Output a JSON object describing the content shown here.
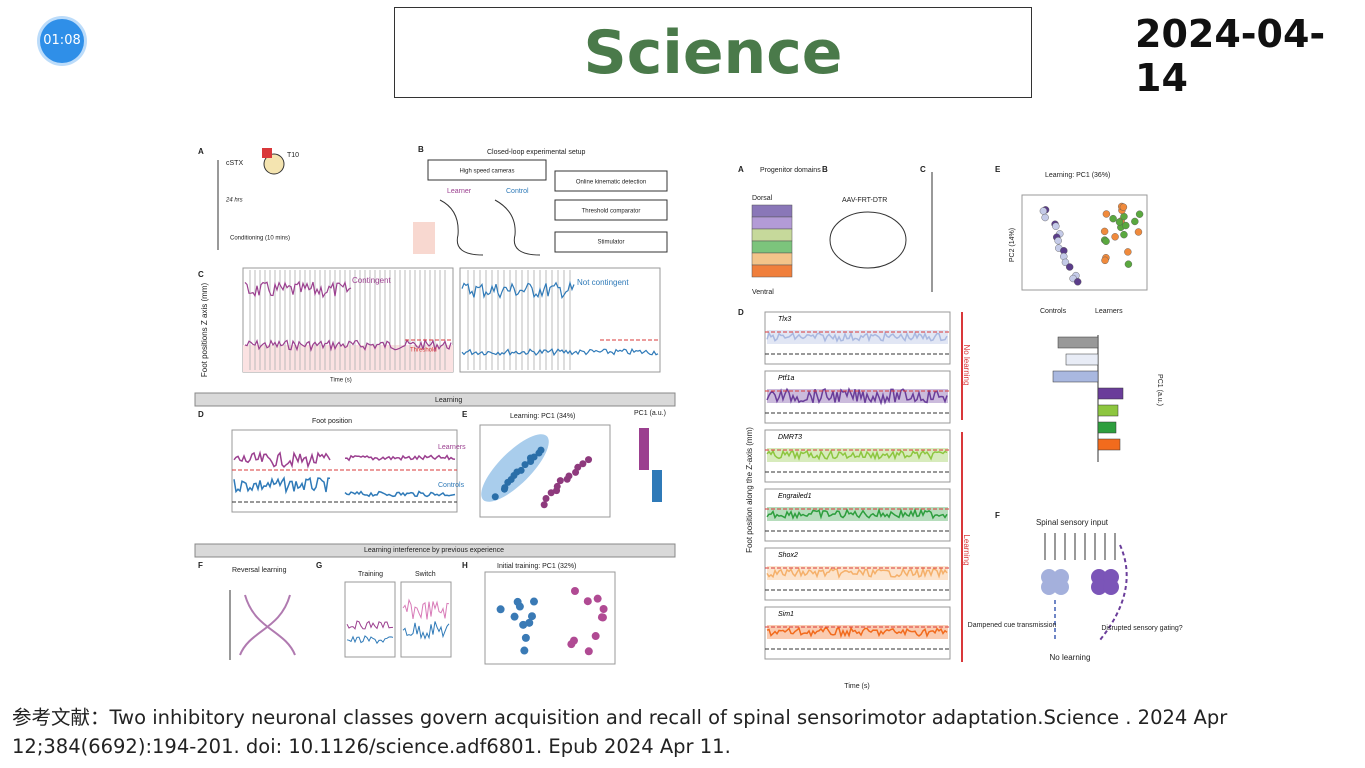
{
  "timer": "01:08",
  "header": {
    "title": "Science",
    "date": "2024-04-14"
  },
  "figure1": {
    "labels": [
      "A",
      "cSTX",
      "T10",
      "24 hrs",
      "Conditioning (10 mins)",
      "B",
      "Closed-loop experimental setup",
      "High speed cameras",
      "Learner",
      "Control",
      "Online kinematic detection",
      "Threshold comparator",
      "Stimulator",
      "C",
      "Foot positions Z axis (mm)",
      "Contingent",
      "Not contingent",
      "Threshold",
      "Time (s)",
      "Learning",
      "D",
      "Foot position",
      "E",
      "Learning: PC1 (34%)",
      "PC1 (a.u.)",
      "Learners",
      "Controls",
      "Learning interference by previous experience",
      "F",
      "Reversal learning",
      "G",
      "Training",
      "Switch",
      "H",
      "Initial training: PC1 (32%)"
    ]
  },
  "figure2": {
    "labels": [
      "A",
      "Progenitor domains",
      "Dorsal",
      "Ventral",
      "B",
      "AAV-FRT-DTR",
      "C",
      "D",
      "Foot position along the Z-axis (mm)",
      "Time (s)",
      "No learning",
      "Learning",
      "E",
      "Learning: PC1 (36%)",
      "PC2 (14%)",
      "Controls",
      "Learners",
      "PC1 (a.u.)",
      "F",
      "Spinal sensory input",
      "No learning",
      "Dampened cue transmission",
      "Disrupted sensory gating?"
    ],
    "genes": [
      "Tlx3",
      "Ptf1a",
      "DMRT3",
      "Engrailed1",
      "Shox2",
      "Sim1"
    ]
  },
  "reference": "参考文献：Two inhibitory neuronal classes govern acquisition and recall of spinal sensorimotor adaptation.Science . 2024 Apr 12;384(6692):194-201. doi: 10.1126/science.adf6801. Epub 2024 Apr 11."
}
